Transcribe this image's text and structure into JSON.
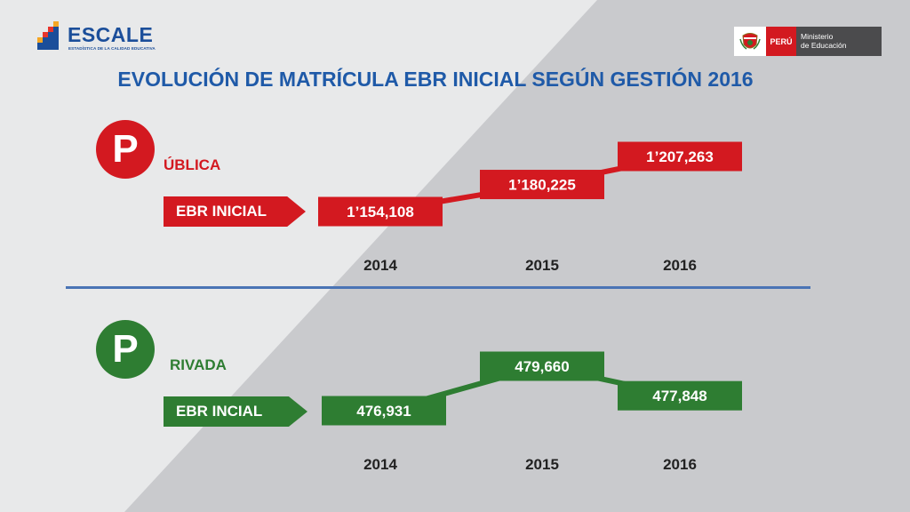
{
  "header": {
    "logo_name": "ESCALE",
    "logo_subtitle": "ESTADÍSTICA DE LA CALIDAD EDUCATIVA",
    "ministry_peru": "PERÚ",
    "ministry_line1": "Ministerio",
    "ministry_line2": "de Educación"
  },
  "title": "EVOLUCIÓN DE MATRÍCULA EBR INICIAL SEGÚN GESTIÓN 2016",
  "colors": {
    "publica": "#d31920",
    "privada": "#2e7d32",
    "title": "#1f5aa8",
    "divider": "#4a74b5"
  },
  "icons": {
    "logo": "escale-stairs-icon",
    "ministry": "peru-coat-of-arms-icon"
  },
  "sections": {
    "publica": {
      "letter": "P",
      "word": "ÚBLICA",
      "label": "EBR INICIAL"
    },
    "privada": {
      "letter": "P",
      "word": "RIVADA",
      "label": "EBR INCIAL"
    }
  },
  "chart_data": [
    {
      "type": "line",
      "series": [
        {
          "name": "EBR INICIAL",
          "values": [
            1154108,
            1180225,
            1207263
          ]
        }
      ],
      "x": [
        "2014",
        "2015",
        "2016"
      ],
      "labels": [
        "1’154,108",
        "1’180,225",
        "1’207,263"
      ],
      "group": "PÚBLICA"
    },
    {
      "type": "line",
      "series": [
        {
          "name": "EBR INCIAL",
          "values": [
            476931,
            479660,
            477848
          ]
        }
      ],
      "x": [
        "2014",
        "2015",
        "2016"
      ],
      "labels": [
        "476,931",
        "479,660",
        "477,848"
      ],
      "group": "PRIVADA"
    }
  ]
}
